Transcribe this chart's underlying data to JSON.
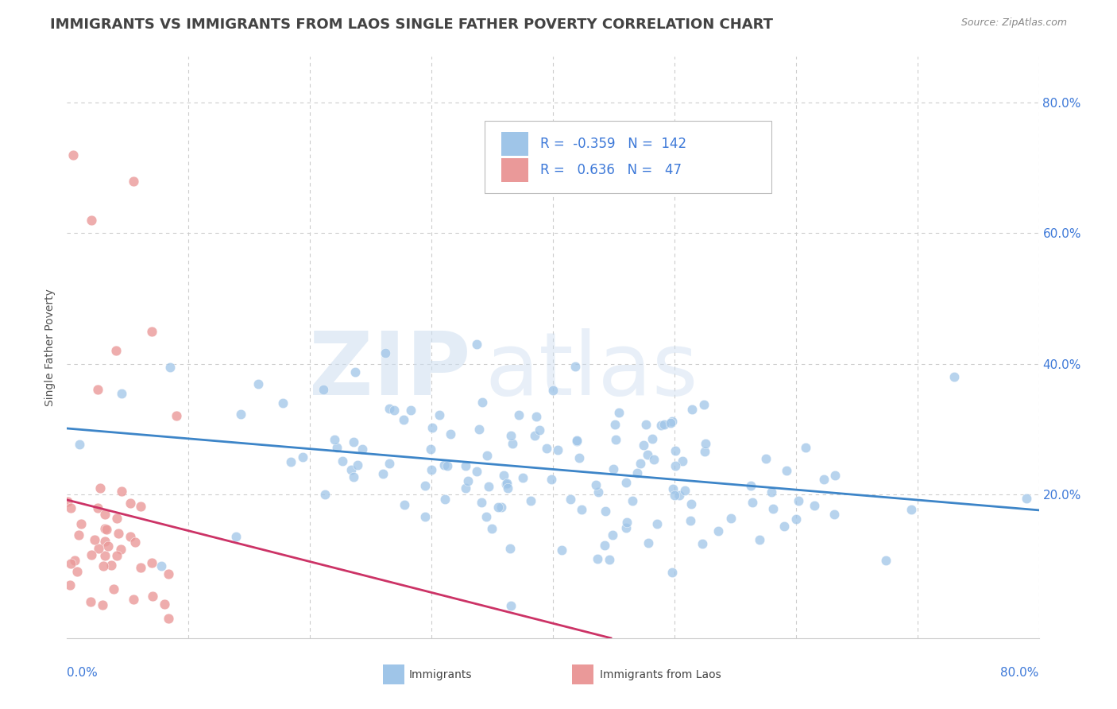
{
  "title": "IMMIGRANTS VS IMMIGRANTS FROM LAOS SINGLE FATHER POVERTY CORRELATION CHART",
  "source": "Source: ZipAtlas.com",
  "ylabel": "Single Father Poverty",
  "xmin": 0.0,
  "xmax": 0.8,
  "ymin": -0.02,
  "ymax": 0.87,
  "legend_immigrants_R": "-0.359",
  "legend_immigrants_N": "142",
  "legend_laos_R": "0.636",
  "legend_laos_N": "47",
  "blue_color": "#9fc5e8",
  "pink_color": "#ea9999",
  "blue_line_color": "#3d85c8",
  "pink_line_color": "#cc3366",
  "title_color": "#434343",
  "source_color": "#888888",
  "legend_value_color": "#3c78d8",
  "background_color": "#ffffff",
  "grid_color": "#cccccc",
  "yticks": [
    0.2,
    0.4,
    0.6,
    0.8
  ],
  "ytick_labels": [
    "20.0%",
    "40.0%",
    "60.0%",
    "80.0%"
  ]
}
